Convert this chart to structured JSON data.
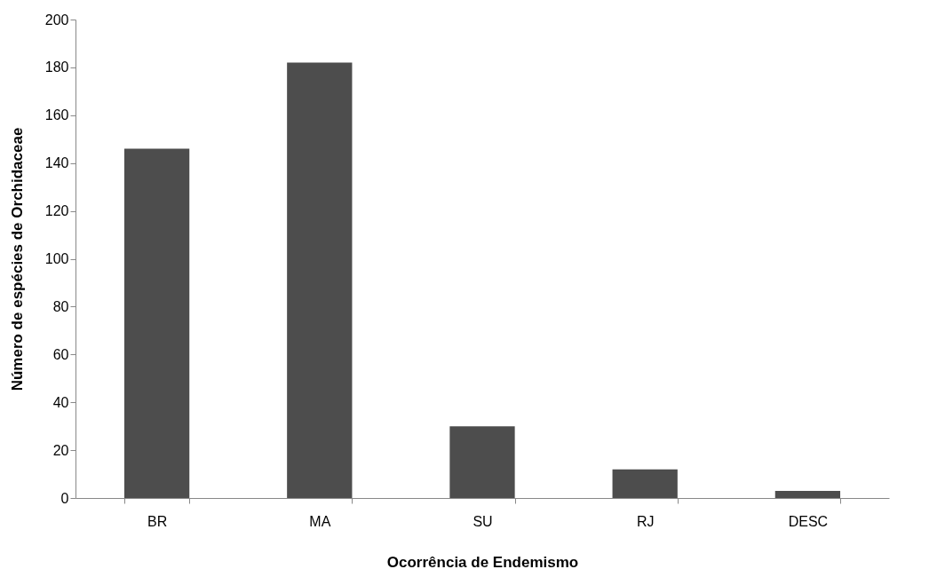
{
  "chart_data": {
    "type": "bar",
    "xlabel": "Ocorrência de Endemismo",
    "ylabel": "Número de espécies de Orchidaceae",
    "categories": [
      "BR",
      "MA",
      "SU",
      "RJ",
      "DESC"
    ],
    "values": [
      146,
      182,
      30,
      12,
      3
    ],
    "color": "#4d4d4d",
    "ylim": [
      0,
      200
    ],
    "yticks": [
      0,
      20,
      40,
      60,
      80,
      100,
      120,
      140,
      160,
      180,
      200
    ],
    "grid": false
  }
}
